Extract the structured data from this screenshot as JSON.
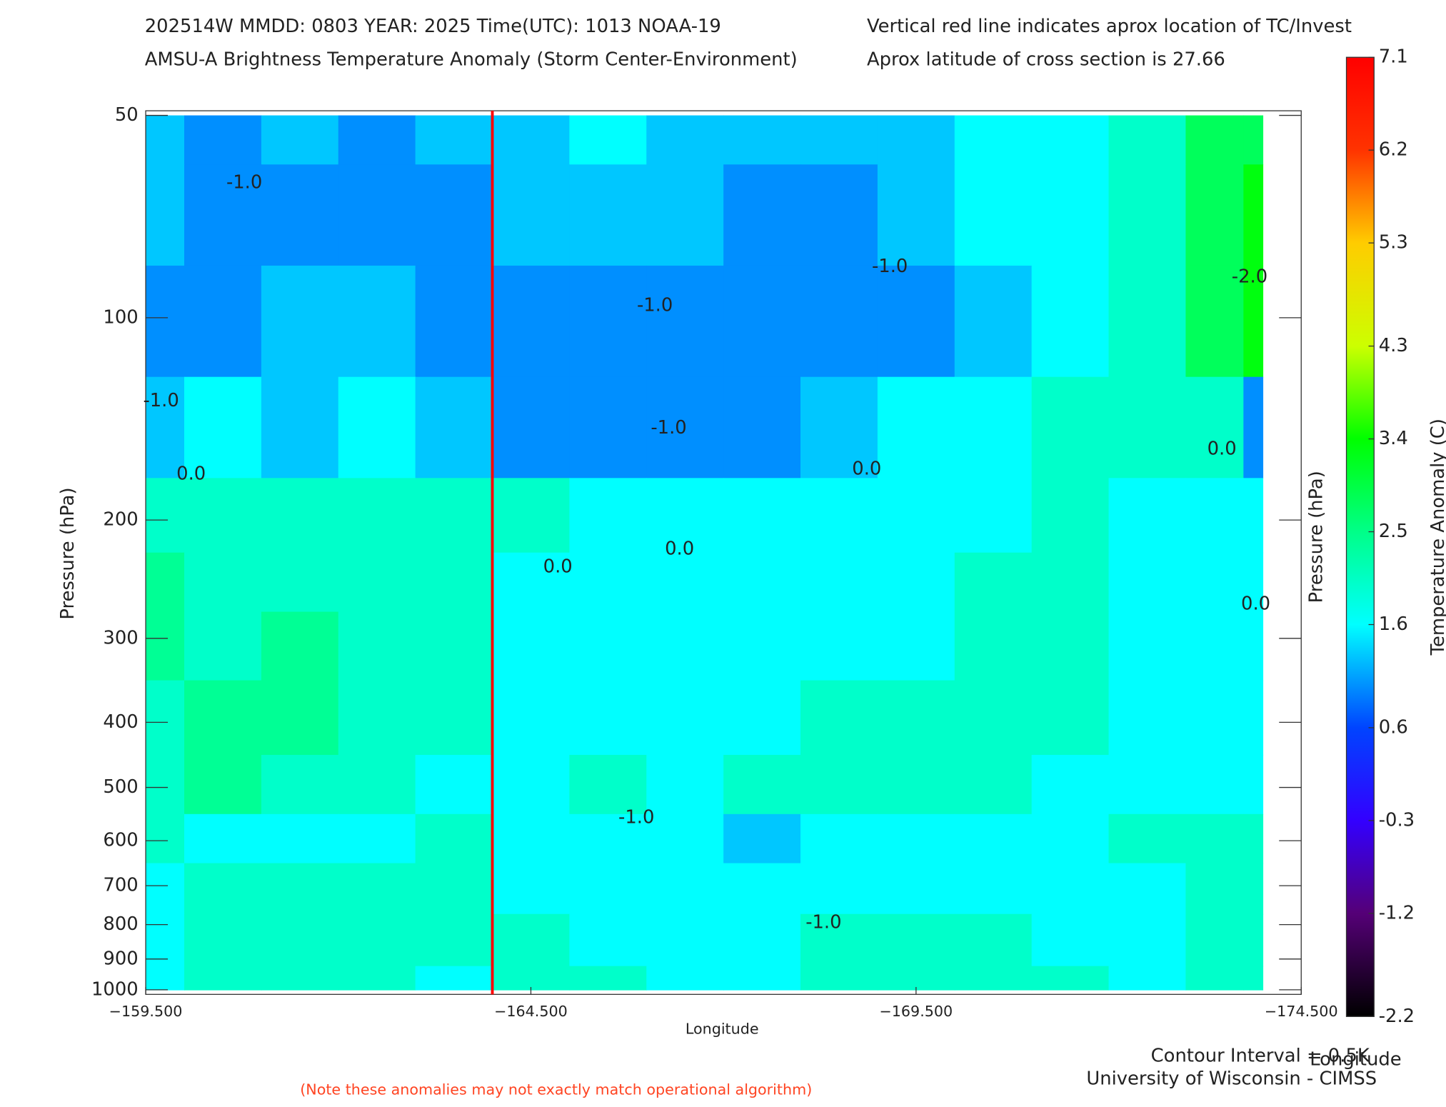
{
  "chart_data": {
    "type": "contour",
    "title": "202514W  MMDD: 0803 YEAR: 2025 Time(UTC): 1013 NOAA-19",
    "subtitle": "AMSU-A Brightness Temperature Anomaly (Storm Center-Environment)",
    "note_right_1": "Vertical red line indicates aprox location of TC/Invest",
    "note_right_2": "Aprox latitude of cross section is 27.66",
    "x_label": "Longitude",
    "y_label": "Pressure (hPa)",
    "y2_label": "Pressure (hPa)",
    "colorbar_label": "Temperature Anomaly (C)",
    "colorbar_bottom_label": "Longitude",
    "contour_interval": "Contour Interval = 0.5K",
    "credit": "University of Wisconsin - CIMSS",
    "footnote": "(Note these anomalies may not exactly match operational algorithm)",
    "tc_lon": -164.0,
    "tc_line_color": "#ff0000",
    "xlim": [
      -159.5,
      -174.5
    ],
    "xticks": [
      {
        "value": -159.5,
        "label": "−159.500"
      },
      {
        "value": -164.5,
        "label": "−164.500"
      },
      {
        "value": -169.5,
        "label": "−169.500"
      },
      {
        "value": -174.5,
        "label": "−174.500"
      }
    ],
    "ylim": [
      50,
      1000
    ],
    "y_log": true,
    "y_inverted": true,
    "yticks": [
      50,
      100,
      200,
      300,
      400,
      500,
      600,
      700,
      800,
      900,
      1000
    ],
    "x": [
      -159.5,
      -160.5,
      -161.5,
      -162.5,
      -163.5,
      -164.5,
      -165.5,
      -166.5,
      -167.5,
      -168.5,
      -169.5,
      -170.5,
      -171.5,
      -172.5,
      -173.5,
      -174.0
    ],
    "y": [
      50,
      70,
      100,
      150,
      200,
      250,
      300,
      400,
      500,
      600,
      700,
      850,
      1000
    ],
    "values": [
      [
        1.3,
        1.0,
        1.3,
        1.0,
        1.3,
        1.3,
        1.6,
        1.3,
        1.3,
        1.3,
        1.3,
        1.6,
        1.6,
        2.0,
        2.8,
        2.8
      ],
      [
        1.3,
        1.0,
        1.0,
        1.0,
        1.0,
        1.3,
        1.3,
        1.3,
        1.0,
        1.0,
        1.3,
        1.6,
        1.6,
        2.0,
        2.8,
        3.3
      ],
      [
        1.0,
        1.0,
        1.3,
        1.3,
        1.0,
        1.0,
        1.0,
        1.0,
        1.0,
        1.0,
        1.0,
        1.3,
        1.6,
        2.0,
        2.8,
        3.3
      ],
      [
        1.3,
        1.6,
        1.3,
        1.6,
        1.3,
        1.0,
        1.0,
        1.0,
        1.0,
        1.3,
        1.6,
        1.6,
        2.0,
        2.0,
        2.0,
        1.0
      ],
      [
        2.0,
        2.0,
        2.0,
        2.0,
        2.0,
        2.0,
        1.6,
        1.6,
        1.6,
        1.6,
        1.6,
        1.6,
        2.0,
        1.6,
        1.6,
        1.6
      ],
      [
        2.4,
        2.0,
        2.0,
        2.0,
        2.0,
        1.6,
        1.6,
        1.6,
        1.6,
        1.6,
        1.6,
        2.0,
        2.0,
        1.6,
        1.6,
        1.6
      ],
      [
        2.4,
        2.0,
        2.4,
        2.0,
        2.0,
        1.6,
        1.6,
        1.6,
        1.6,
        1.6,
        1.6,
        2.0,
        2.0,
        1.6,
        1.6,
        1.6
      ],
      [
        2.0,
        2.4,
        2.4,
        2.0,
        2.0,
        1.6,
        1.6,
        1.6,
        1.6,
        2.0,
        2.0,
        2.0,
        2.0,
        1.6,
        1.6,
        1.6
      ],
      [
        2.0,
        2.4,
        2.0,
        2.0,
        1.6,
        1.6,
        2.0,
        1.6,
        2.0,
        2.0,
        2.0,
        2.0,
        1.6,
        1.6,
        1.6,
        1.6
      ],
      [
        2.0,
        1.6,
        1.6,
        1.6,
        2.0,
        1.6,
        1.6,
        1.6,
        1.3,
        1.6,
        1.6,
        1.6,
        1.6,
        2.0,
        2.0,
        2.0
      ],
      [
        1.6,
        2.0,
        2.0,
        2.0,
        2.0,
        1.6,
        1.6,
        1.6,
        1.6,
        1.6,
        1.6,
        1.6,
        1.6,
        1.6,
        2.0,
        2.0
      ],
      [
        1.6,
        2.0,
        2.0,
        2.0,
        2.0,
        2.0,
        1.6,
        1.6,
        1.6,
        2.0,
        2.0,
        2.0,
        1.6,
        1.6,
        2.0,
        2.0
      ],
      [
        1.6,
        2.0,
        2.0,
        2.0,
        1.6,
        2.0,
        2.0,
        1.6,
        1.6,
        2.0,
        2.0,
        2.0,
        2.0,
        1.6,
        2.0,
        2.0
      ]
    ],
    "colorscale": [
      {
        "value": -2.2,
        "color": "#000000"
      },
      {
        "value": -1.2,
        "color": "#550077"
      },
      {
        "value": -0.3,
        "color": "#3300ff"
      },
      {
        "value": 0.6,
        "color": "#0044ff"
      },
      {
        "value": 1.6,
        "color": "#00ffff"
      },
      {
        "value": 2.5,
        "color": "#00ff88"
      },
      {
        "value": 3.4,
        "color": "#00ff00"
      },
      {
        "value": 4.3,
        "color": "#ccff00"
      },
      {
        "value": 5.3,
        "color": "#ffcc00"
      },
      {
        "value": 6.2,
        "color": "#ff3300"
      },
      {
        "value": 7.1,
        "color": "#ff0000"
      }
    ],
    "clim": [
      -2.2,
      7.1
    ],
    "cticks": [
      7.1,
      6.2,
      5.3,
      4.3,
      3.4,
      2.5,
      1.6,
      0.6,
      -0.3,
      -1.2,
      -2.2
    ],
    "contour_labels": [
      {
        "text": "-1.0",
        "lon": -160.78,
        "pressure": 63
      },
      {
        "text": "-1.0",
        "lon": -159.7,
        "pressure": 133
      },
      {
        "text": "0.0",
        "lon": -160.09,
        "pressure": 171
      },
      {
        "text": "-1.0",
        "lon": -166.11,
        "pressure": 96
      },
      {
        "text": "-1.0",
        "lon": -169.16,
        "pressure": 84
      },
      {
        "text": "-1.0",
        "lon": -166.29,
        "pressure": 146
      },
      {
        "text": "0.0",
        "lon": -168.86,
        "pressure": 168
      },
      {
        "text": "0.0",
        "lon": -166.43,
        "pressure": 221
      },
      {
        "text": "0.0",
        "lon": -164.85,
        "pressure": 235
      },
      {
        "text": "-2.0",
        "lon": -173.83,
        "pressure": 87
      },
      {
        "text": "0.0",
        "lon": -173.47,
        "pressure": 157
      },
      {
        "text": "0.0",
        "lon": -173.91,
        "pressure": 267
      },
      {
        "text": "-1.0",
        "lon": -165.87,
        "pressure": 555
      },
      {
        "text": "-1.0",
        "lon": -168.3,
        "pressure": 795
      }
    ]
  }
}
